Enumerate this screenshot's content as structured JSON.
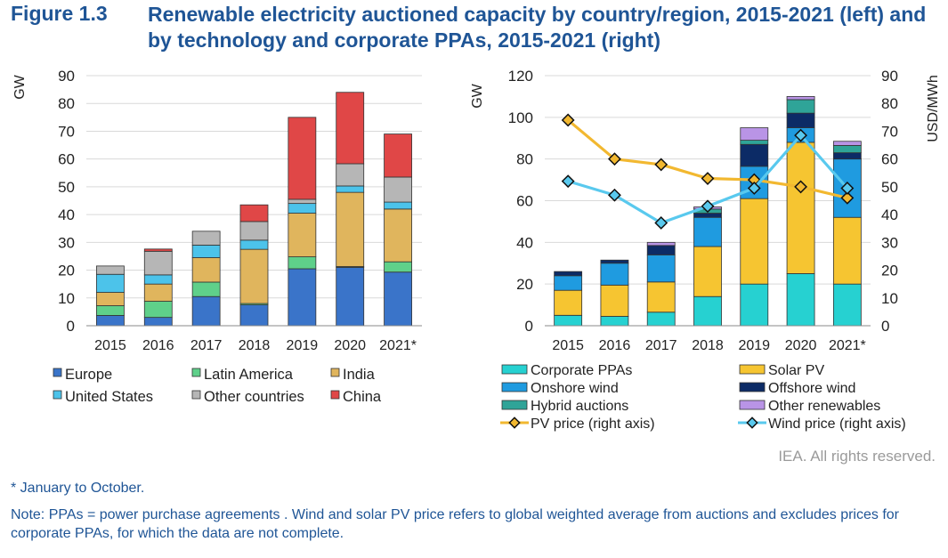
{
  "figure": {
    "label": "Figure 1.3",
    "title": "Renewable electricity auctioned capacity by country/region, 2015-2021 (left) and by technology and corporate PPAs, 2015-2021 (right)",
    "rights": "IEA. All rights reserved.",
    "footnote": "* January to October.",
    "note": "Note: PPAs = power purchase agreements . Wind and solar PV price refers to global weighted average from auctions and excludes prices for corporate PPAs, for which the data are not complete."
  },
  "chart_data": [
    {
      "type": "bar",
      "stacked": true,
      "title": "Auctioned capacity by country/region",
      "ylabel": "GW",
      "ylim": [
        0,
        90
      ],
      "yticks": [
        0,
        10,
        20,
        30,
        40,
        50,
        60,
        70,
        80,
        90
      ],
      "categories": [
        "2015",
        "2016",
        "2017",
        "2018",
        "2019",
        "2020",
        "2021*"
      ],
      "legend_position": "bottom",
      "series": [
        {
          "name": "Europe",
          "color": "#3a74c9",
          "values": [
            3.7,
            3.0,
            10.5,
            7.5,
            20.5,
            21.0,
            19.3
          ]
        },
        {
          "name": "Latin America",
          "color": "#5fd08a",
          "values": [
            3.5,
            5.8,
            5.2,
            0.5,
            4.3,
            0.3,
            3.7
          ]
        },
        {
          "name": "India",
          "color": "#e0b55d",
          "values": [
            4.8,
            6.2,
            8.8,
            19.5,
            15.7,
            26.7,
            19.0
          ]
        },
        {
          "name": "United States",
          "color": "#4cc3ea",
          "values": [
            6.5,
            3.3,
            4.5,
            3.3,
            3.5,
            2.3,
            2.5
          ]
        },
        {
          "name": "Other countries",
          "color": "#b6b6b6",
          "values": [
            3.0,
            8.5,
            5.0,
            6.7,
            1.5,
            8.0,
            9.0
          ]
        },
        {
          "name": "China",
          "color": "#e04747",
          "values": [
            0,
            0.8,
            0,
            6.0,
            29.5,
            25.7,
            15.5
          ]
        }
      ]
    },
    {
      "type": "bar",
      "stacked": true,
      "title": "Auctioned capacity by technology and corporate PPAs",
      "ylabel": "GW",
      "ylim": [
        0,
        120
      ],
      "yticks": [
        0,
        20,
        40,
        60,
        80,
        100,
        120
      ],
      "y2label": "USD/MWh",
      "y2lim": [
        0,
        90
      ],
      "y2ticks": [
        0,
        10,
        20,
        30,
        40,
        50,
        60,
        70,
        80,
        90
      ],
      "categories": [
        "2015",
        "2016",
        "2017",
        "2018",
        "2019",
        "2020",
        "2021*"
      ],
      "legend_position": "bottom",
      "series": [
        {
          "name": "Corporate PPAs",
          "color": "#26d1d1",
          "values": [
            5,
            4.5,
            6.5,
            14,
            20,
            25,
            20
          ]
        },
        {
          "name": "Solar PV",
          "color": "#f6c531",
          "values": [
            12,
            15,
            14.5,
            24,
            41,
            63,
            32
          ]
        },
        {
          "name": "Onshore wind",
          "color": "#1f9be0",
          "values": [
            7,
            10.5,
            13,
            14,
            15.5,
            7,
            28
          ]
        },
        {
          "name": "Offshore wind",
          "color": "#0c2b66",
          "values": [
            2,
            1.5,
            4.5,
            2,
            10.5,
            7,
            3
          ]
        },
        {
          "name": "Hybrid auctions",
          "color": "#2fa498",
          "values": [
            0,
            0,
            0,
            2,
            2,
            6.5,
            3.5
          ]
        },
        {
          "name": "Other renewables",
          "color": "#b994e6",
          "values": [
            0,
            0,
            1.5,
            1,
            6,
            1.5,
            2
          ]
        }
      ],
      "lines": [
        {
          "name": "PV price (right axis)",
          "axis": "right",
          "color": "#f2b830",
          "values": [
            74,
            60,
            58,
            53,
            52.5,
            50,
            46
          ]
        },
        {
          "name": "Wind price (right axis)",
          "axis": "right",
          "color": "#59c9ee",
          "values": [
            52,
            47,
            37,
            43,
            49.5,
            68.5,
            49.5
          ]
        }
      ]
    }
  ]
}
